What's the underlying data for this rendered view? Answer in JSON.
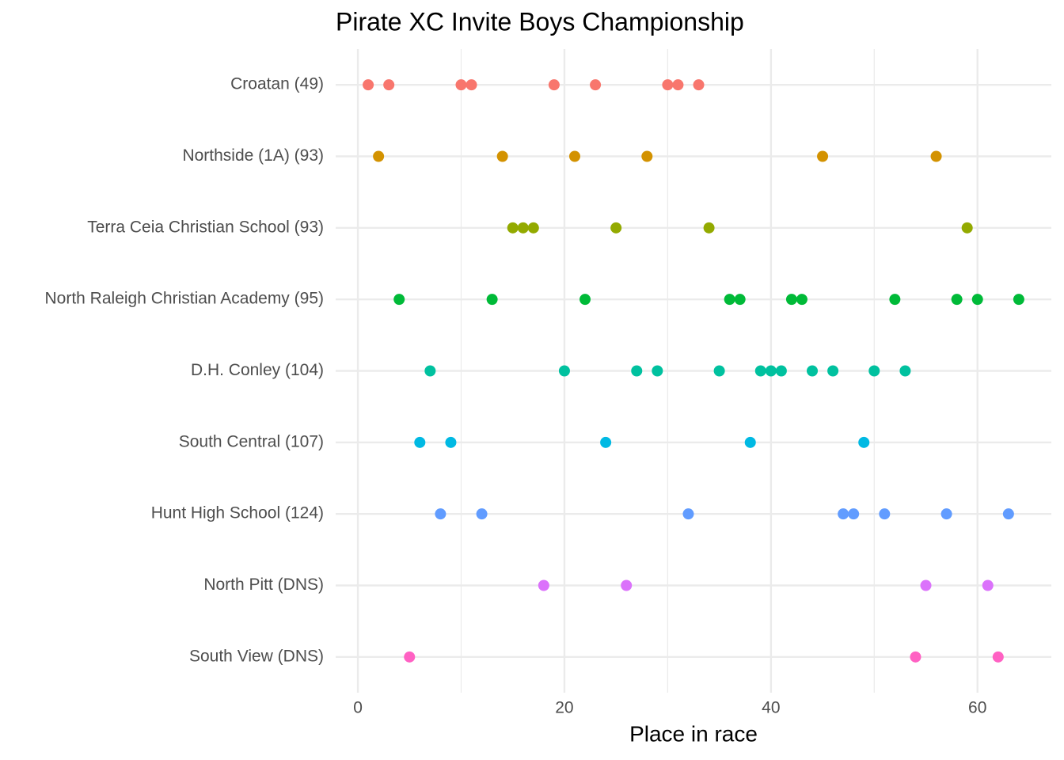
{
  "chart_data": {
    "type": "dotplot",
    "title": "Pirate XC Invite Boys Championship",
    "x_label": "Place in race",
    "xlim": [
      -2.15,
      67.15
    ],
    "xticks": [
      0,
      20,
      40,
      60
    ],
    "minor_xticks": [
      10,
      30,
      50
    ],
    "grid": true,
    "series": [
      {
        "name": "Croatan (49)",
        "color": "#F8766D",
        "values": [
          1,
          3,
          10,
          11,
          19,
          23,
          30,
          31,
          33
        ]
      },
      {
        "name": "Northside (1A) (93)",
        "color": "#D39200",
        "values": [
          2,
          14,
          21,
          28,
          45,
          56
        ]
      },
      {
        "name": "Terra Ceia Christian School (93)",
        "color": "#93AA00",
        "values": [
          15,
          16,
          17,
          25,
          34,
          59
        ]
      },
      {
        "name": "North Raleigh Christian Academy (95)",
        "color": "#00BA38",
        "values": [
          4,
          13,
          22,
          36,
          37,
          42,
          43,
          52,
          58,
          60,
          64
        ]
      },
      {
        "name": "D.H. Conley (104)",
        "color": "#00C19F",
        "values": [
          7,
          20,
          27,
          29,
          35,
          39,
          40,
          41,
          44,
          46,
          50,
          53
        ]
      },
      {
        "name": "South Central (107)",
        "color": "#00B9E3",
        "values": [
          6,
          9,
          24,
          38,
          49
        ]
      },
      {
        "name": "Hunt High School (124)",
        "color": "#619CFF",
        "values": [
          8,
          12,
          32,
          47,
          48,
          51,
          57,
          63
        ]
      },
      {
        "name": "North Pitt (DNS)",
        "color": "#DB72FB",
        "values": [
          18,
          26,
          55,
          61
        ]
      },
      {
        "name": "South View (DNS)",
        "color": "#FF61C3",
        "values": [
          5,
          54,
          62
        ]
      }
    ]
  }
}
